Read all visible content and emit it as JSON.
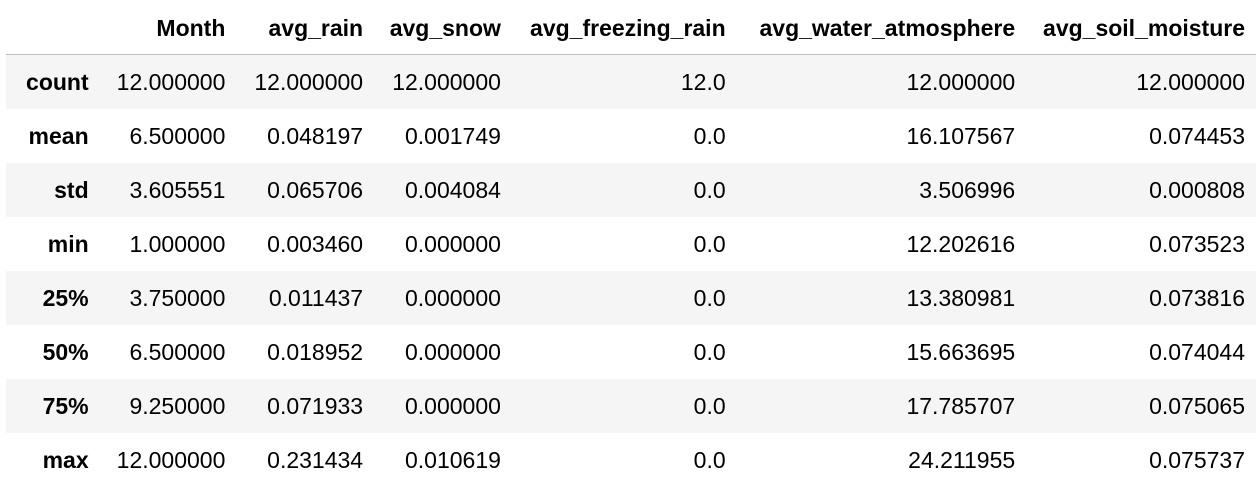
{
  "table": {
    "columns": [
      "",
      "Month",
      "avg_rain",
      "avg_snow",
      "avg_freezing_rain",
      "avg_water_atmosphere",
      "avg_soil_moisture"
    ],
    "rows": [
      {
        "index": "count",
        "values": [
          "12.000000",
          "12.000000",
          "12.000000",
          "12.0",
          "12.000000",
          "12.000000"
        ]
      },
      {
        "index": "mean",
        "values": [
          "6.500000",
          "0.048197",
          "0.001749",
          "0.0",
          "16.107567",
          "0.074453"
        ]
      },
      {
        "index": "std",
        "values": [
          "3.605551",
          "0.065706",
          "0.004084",
          "0.0",
          "3.506996",
          "0.000808"
        ]
      },
      {
        "index": "min",
        "values": [
          "1.000000",
          "0.003460",
          "0.000000",
          "0.0",
          "12.202616",
          "0.073523"
        ]
      },
      {
        "index": "25%",
        "values": [
          "3.750000",
          "0.011437",
          "0.000000",
          "0.0",
          "13.380981",
          "0.073816"
        ]
      },
      {
        "index": "50%",
        "values": [
          "6.500000",
          "0.018952",
          "0.000000",
          "0.0",
          "15.663695",
          "0.074044"
        ]
      },
      {
        "index": "75%",
        "values": [
          "9.250000",
          "0.071933",
          "0.000000",
          "0.0",
          "17.785707",
          "0.075065"
        ]
      },
      {
        "index": "max",
        "values": [
          "12.000000",
          "0.231434",
          "0.010619",
          "0.0",
          "24.211955",
          "0.075737"
        ]
      }
    ]
  }
}
